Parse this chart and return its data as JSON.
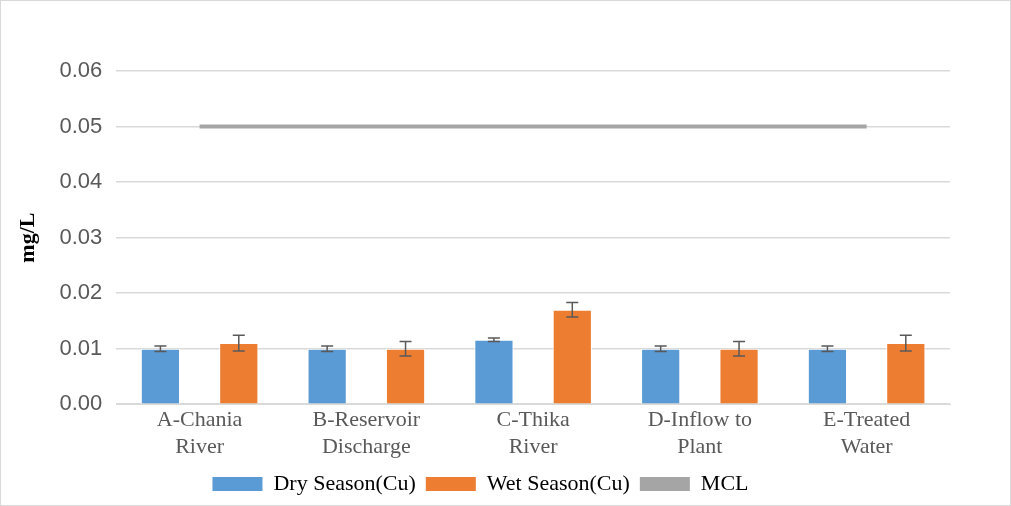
{
  "chart_data": {
    "type": "bar",
    "ylabel": "mg/L",
    "categories": [
      "A-Chania River",
      "B-Reservoir Discharge",
      "C-Thika River",
      "D-Inflow to Plant",
      "E-Treated Water"
    ],
    "series": [
      {
        "name": "Dry Season(Cu)",
        "color": "#5b9bd5",
        "values": [
          0.01,
          0.01,
          0.0116,
          0.01,
          0.01
        ],
        "errors": [
          0.0005,
          0.0005,
          0.0003,
          0.0005,
          0.0005
        ]
      },
      {
        "name": "Wet Season(Cu)",
        "color": "#ed7d31",
        "values": [
          0.011,
          0.01,
          0.017,
          0.01,
          0.011
        ],
        "errors": [
          0.0014,
          0.0013,
          0.0013,
          0.0013,
          0.0014
        ]
      },
      {
        "name": "MCL",
        "type": "line",
        "color": "#a5a5a5",
        "values": [
          0.05,
          0.05,
          0.05,
          0.05,
          0.05
        ],
        "marker": "none"
      }
    ],
    "ylim": [
      0,
      0.06
    ],
    "yticks": [
      {
        "value": 0,
        "label": "0.00"
      },
      {
        "value": 0.01,
        "label": "0.01"
      },
      {
        "value": 0.02,
        "label": "0.02"
      },
      {
        "value": 0.03,
        "label": "0.03"
      },
      {
        "value": 0.04,
        "label": "0.04"
      },
      {
        "value": 0.05,
        "label": "0.05"
      },
      {
        "value": 0.06,
        "label": "0.06"
      }
    ],
    "grid": "y",
    "legend": "bottom"
  }
}
